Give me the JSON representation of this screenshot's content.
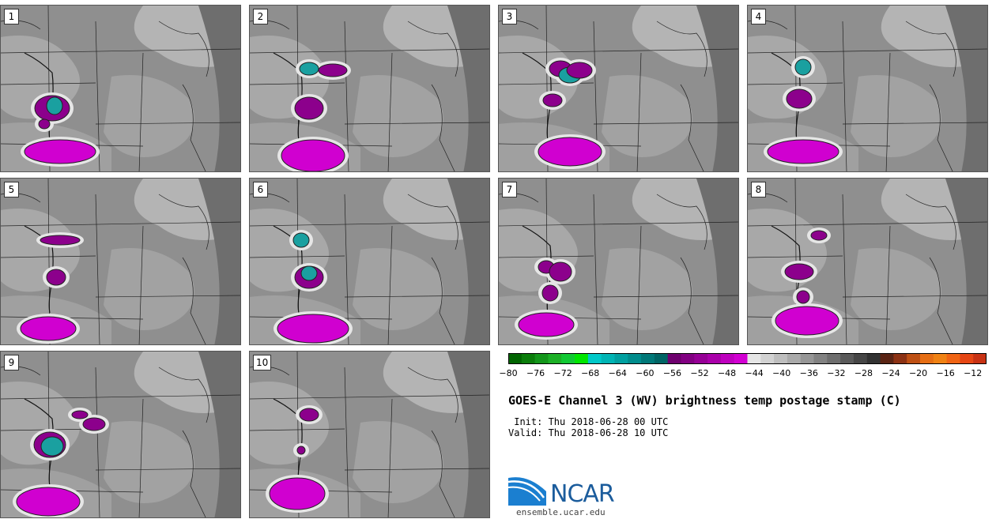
{
  "panels": [
    {
      "label": "1"
    },
    {
      "label": "2"
    },
    {
      "label": "3"
    },
    {
      "label": "4"
    },
    {
      "label": "5"
    },
    {
      "label": "6"
    },
    {
      "label": "7"
    },
    {
      "label": "8"
    },
    {
      "label": "9"
    },
    {
      "label": "10"
    }
  ],
  "colorbar": {
    "min": -80,
    "max": -10,
    "tick_labels": [
      "-80",
      "-76",
      "-72",
      "-68",
      "-64",
      "-60",
      "-56",
      "-52",
      "-48",
      "-44",
      "-40",
      "-36",
      "-32",
      "-28",
      "-24",
      "-20",
      "-16",
      "-12"
    ],
    "colors": [
      "#006400",
      "#0a7d0a",
      "#13961a",
      "#1cb026",
      "#11c933",
      "#00e600",
      "#00c8c8",
      "#00b4b4",
      "#00a0a0",
      "#008c8c",
      "#007878",
      "#006464",
      "#6e006e",
      "#820082",
      "#960096",
      "#aa00aa",
      "#be00be",
      "#d200d2",
      "#e6e6e6",
      "#d2d2d2",
      "#bebebe",
      "#aaaaaa",
      "#969696",
      "#828282",
      "#6e6e6e",
      "#5a5a5a",
      "#464646",
      "#323232",
      "#5a2414",
      "#8c3214",
      "#be5014",
      "#e66e14",
      "#f08214",
      "#f06414",
      "#e64614",
      "#c83214"
    ]
  },
  "title": "GOES-E Channel 3 (WV) brightness temp postage stamp (C)",
  "init_line": " Init: Thu 2018-06-28 00 UTC",
  "valid_line": "Valid: Thu 2018-06-28 10 UTC",
  "logo": {
    "name": "NCAR",
    "url": "ensemble.ucar.edu"
  }
}
